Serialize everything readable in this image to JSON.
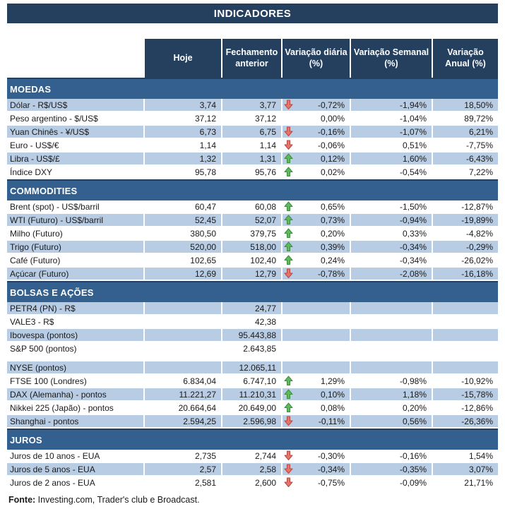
{
  "chart_data": {
    "type": "table",
    "title": "INDICADORES",
    "columns": [
      "Hoje",
      "Fechamento anterior",
      "Variação diária (%)",
      "Variação Semanal (%)",
      "Variação Anual (%)"
    ],
    "sections": [
      {
        "name": "MOEDAS",
        "rows": [
          {
            "label": "Dólar - R$/US$",
            "hoje": "3,74",
            "fechamento": "3,77",
            "arrow": "down",
            "var_diaria": "-0,72%",
            "var_semanal": "-1,94%",
            "var_anual": "18,50%",
            "striped": true
          },
          {
            "label": "Peso argentino - $/US$",
            "hoje": "37,12",
            "fechamento": "37,12",
            "arrow": "",
            "var_diaria": "0,00%",
            "var_semanal": "-1,04%",
            "var_anual": "89,72%",
            "striped": false
          },
          {
            "label": "Yuan Chinês - ¥/US$",
            "hoje": "6,73",
            "fechamento": "6,75",
            "arrow": "down",
            "var_diaria": "-0,16%",
            "var_semanal": "-1,07%",
            "var_anual": "6,21%",
            "striped": true
          },
          {
            "label": "Euro - US$/€",
            "hoje": "1,14",
            "fechamento": "1,14",
            "arrow": "down",
            "var_diaria": "-0,06%",
            "var_semanal": "0,51%",
            "var_anual": "-7,75%",
            "striped": false
          },
          {
            "label": "Libra - US$/£",
            "hoje": "1,32",
            "fechamento": "1,31",
            "arrow": "up",
            "var_diaria": "0,12%",
            "var_semanal": "1,60%",
            "var_anual": "-6,43%",
            "striped": true
          },
          {
            "label": "Índice DXY",
            "hoje": "95,78",
            "fechamento": "95,76",
            "arrow": "up",
            "var_diaria": "0,02%",
            "var_semanal": "-0,54%",
            "var_anual": "7,22%",
            "striped": false
          }
        ]
      },
      {
        "name": "COMMODITIES",
        "rows": [
          {
            "label": "Brent (spot) - US$/barril",
            "hoje": "60,47",
            "fechamento": "60,08",
            "arrow": "up",
            "var_diaria": "0,65%",
            "var_semanal": "-1,50%",
            "var_anual": "-12,87%",
            "striped": false
          },
          {
            "label": "WTI (Futuro) - US$/barril",
            "hoje": "52,45",
            "fechamento": "52,07",
            "arrow": "up",
            "var_diaria": "0,73%",
            "var_semanal": "-0,94%",
            "var_anual": "-19,89%",
            "striped": true
          },
          {
            "label": "Milho (Futuro)",
            "hoje": "380,50",
            "fechamento": "379,75",
            "arrow": "up",
            "var_diaria": "0,20%",
            "var_semanal": "0,33%",
            "var_anual": "-4,82%",
            "striped": false
          },
          {
            "label": "Trigo (Futuro)",
            "hoje": "520,00",
            "fechamento": "518,00",
            "arrow": "up",
            "var_diaria": "0,39%",
            "var_semanal": "-0,34%",
            "var_anual": "-0,29%",
            "striped": true
          },
          {
            "label": "Café (Futuro)",
            "hoje": "102,65",
            "fechamento": "102,40",
            "arrow": "up",
            "var_diaria": "0,24%",
            "var_semanal": "-0,34%",
            "var_anual": "-26,02%",
            "striped": false
          },
          {
            "label": "Açúcar (Futuro)",
            "hoje": "12,69",
            "fechamento": "12,79",
            "arrow": "down",
            "var_diaria": "-0,78%",
            "var_semanal": "-2,08%",
            "var_anual": "-16,18%",
            "striped": true
          }
        ]
      },
      {
        "name": "BOLSAS E AÇÕES",
        "rows": [
          {
            "label": "PETR4 (PN) - R$",
            "hoje": "",
            "fechamento": "24,77",
            "arrow": "",
            "var_diaria": "",
            "var_semanal": "",
            "var_anual": "",
            "striped": true
          },
          {
            "label": "VALE3 - R$",
            "hoje": "",
            "fechamento": "42,38",
            "arrow": "",
            "var_diaria": "",
            "var_semanal": "",
            "var_anual": "",
            "striped": false
          },
          {
            "label": "Ibovespa (pontos)",
            "hoje": "",
            "fechamento": "95.443,88",
            "arrow": "",
            "var_diaria": "",
            "var_semanal": "",
            "var_anual": "",
            "striped": true
          },
          {
            "label": "S&P 500 (pontos)",
            "hoje": "",
            "fechamento": "2.643,85",
            "arrow": "",
            "var_diaria": "",
            "var_semanal": "",
            "var_anual": "",
            "striped": false
          },
          {
            "blank": true
          },
          {
            "label": "NYSE (pontos)",
            "hoje": "",
            "fechamento": "12.065,11",
            "arrow": "",
            "var_diaria": "",
            "var_semanal": "",
            "var_anual": "",
            "striped": true
          },
          {
            "label": "FTSE 100 (Londres)",
            "hoje": "6.834,04",
            "fechamento": "6.747,10",
            "arrow": "up",
            "var_diaria": "1,29%",
            "var_semanal": "-0,98%",
            "var_anual": "-10,92%",
            "striped": false
          },
          {
            "label": "DAX (Alemanha) - pontos",
            "hoje": "11.221,27",
            "fechamento": "11.210,31",
            "arrow": "up",
            "var_diaria": "0,10%",
            "var_semanal": "1,18%",
            "var_anual": "-15,78%",
            "striped": true
          },
          {
            "label": "Nikkei 225 (Japão) - pontos",
            "hoje": "20.664,64",
            "fechamento": "20.649,00",
            "arrow": "up",
            "var_diaria": "0,08%",
            "var_semanal": "0,20%",
            "var_anual": "-12,86%",
            "striped": false
          },
          {
            "label": "Shanghai - pontos",
            "hoje": "2.594,25",
            "fechamento": "2.596,98",
            "arrow": "down",
            "var_diaria": "-0,11%",
            "var_semanal": "0,56%",
            "var_anual": "-26,36%",
            "striped": true
          }
        ]
      },
      {
        "name": "JUROS",
        "rows": [
          {
            "label": "Juros de 10 anos - EUA",
            "hoje": "2,735",
            "fechamento": "2,744",
            "arrow": "down",
            "var_diaria": "-0,30%",
            "var_semanal": "-0,16%",
            "var_anual": "1,54%",
            "striped": false
          },
          {
            "label": "Juros de 5 anos - EUA",
            "hoje": "2,57",
            "fechamento": "2,58",
            "arrow": "down",
            "var_diaria": "-0,34%",
            "var_semanal": "-0,35%",
            "var_anual": "3,07%",
            "striped": true
          },
          {
            "label": "Juros de 2 anos - EUA",
            "hoje": "2,581",
            "fechamento": "2,600",
            "arrow": "down",
            "var_diaria": "-0,75%",
            "var_semanal": "-0,09%",
            "var_anual": "21,71%",
            "striped": false
          }
        ]
      }
    ]
  },
  "footer": {
    "label": "Fonte:",
    "text": " Investing.com, Trader's club e Broadcast."
  },
  "colors": {
    "banner": "#24405E",
    "section_band": "#33608E",
    "stripe": "#B8CCE4",
    "arrow_up_fill": "#5FB75F",
    "arrow_up_stroke": "#3E8E3E",
    "arrow_down_fill": "#E4756B",
    "arrow_down_stroke": "#B84742"
  }
}
